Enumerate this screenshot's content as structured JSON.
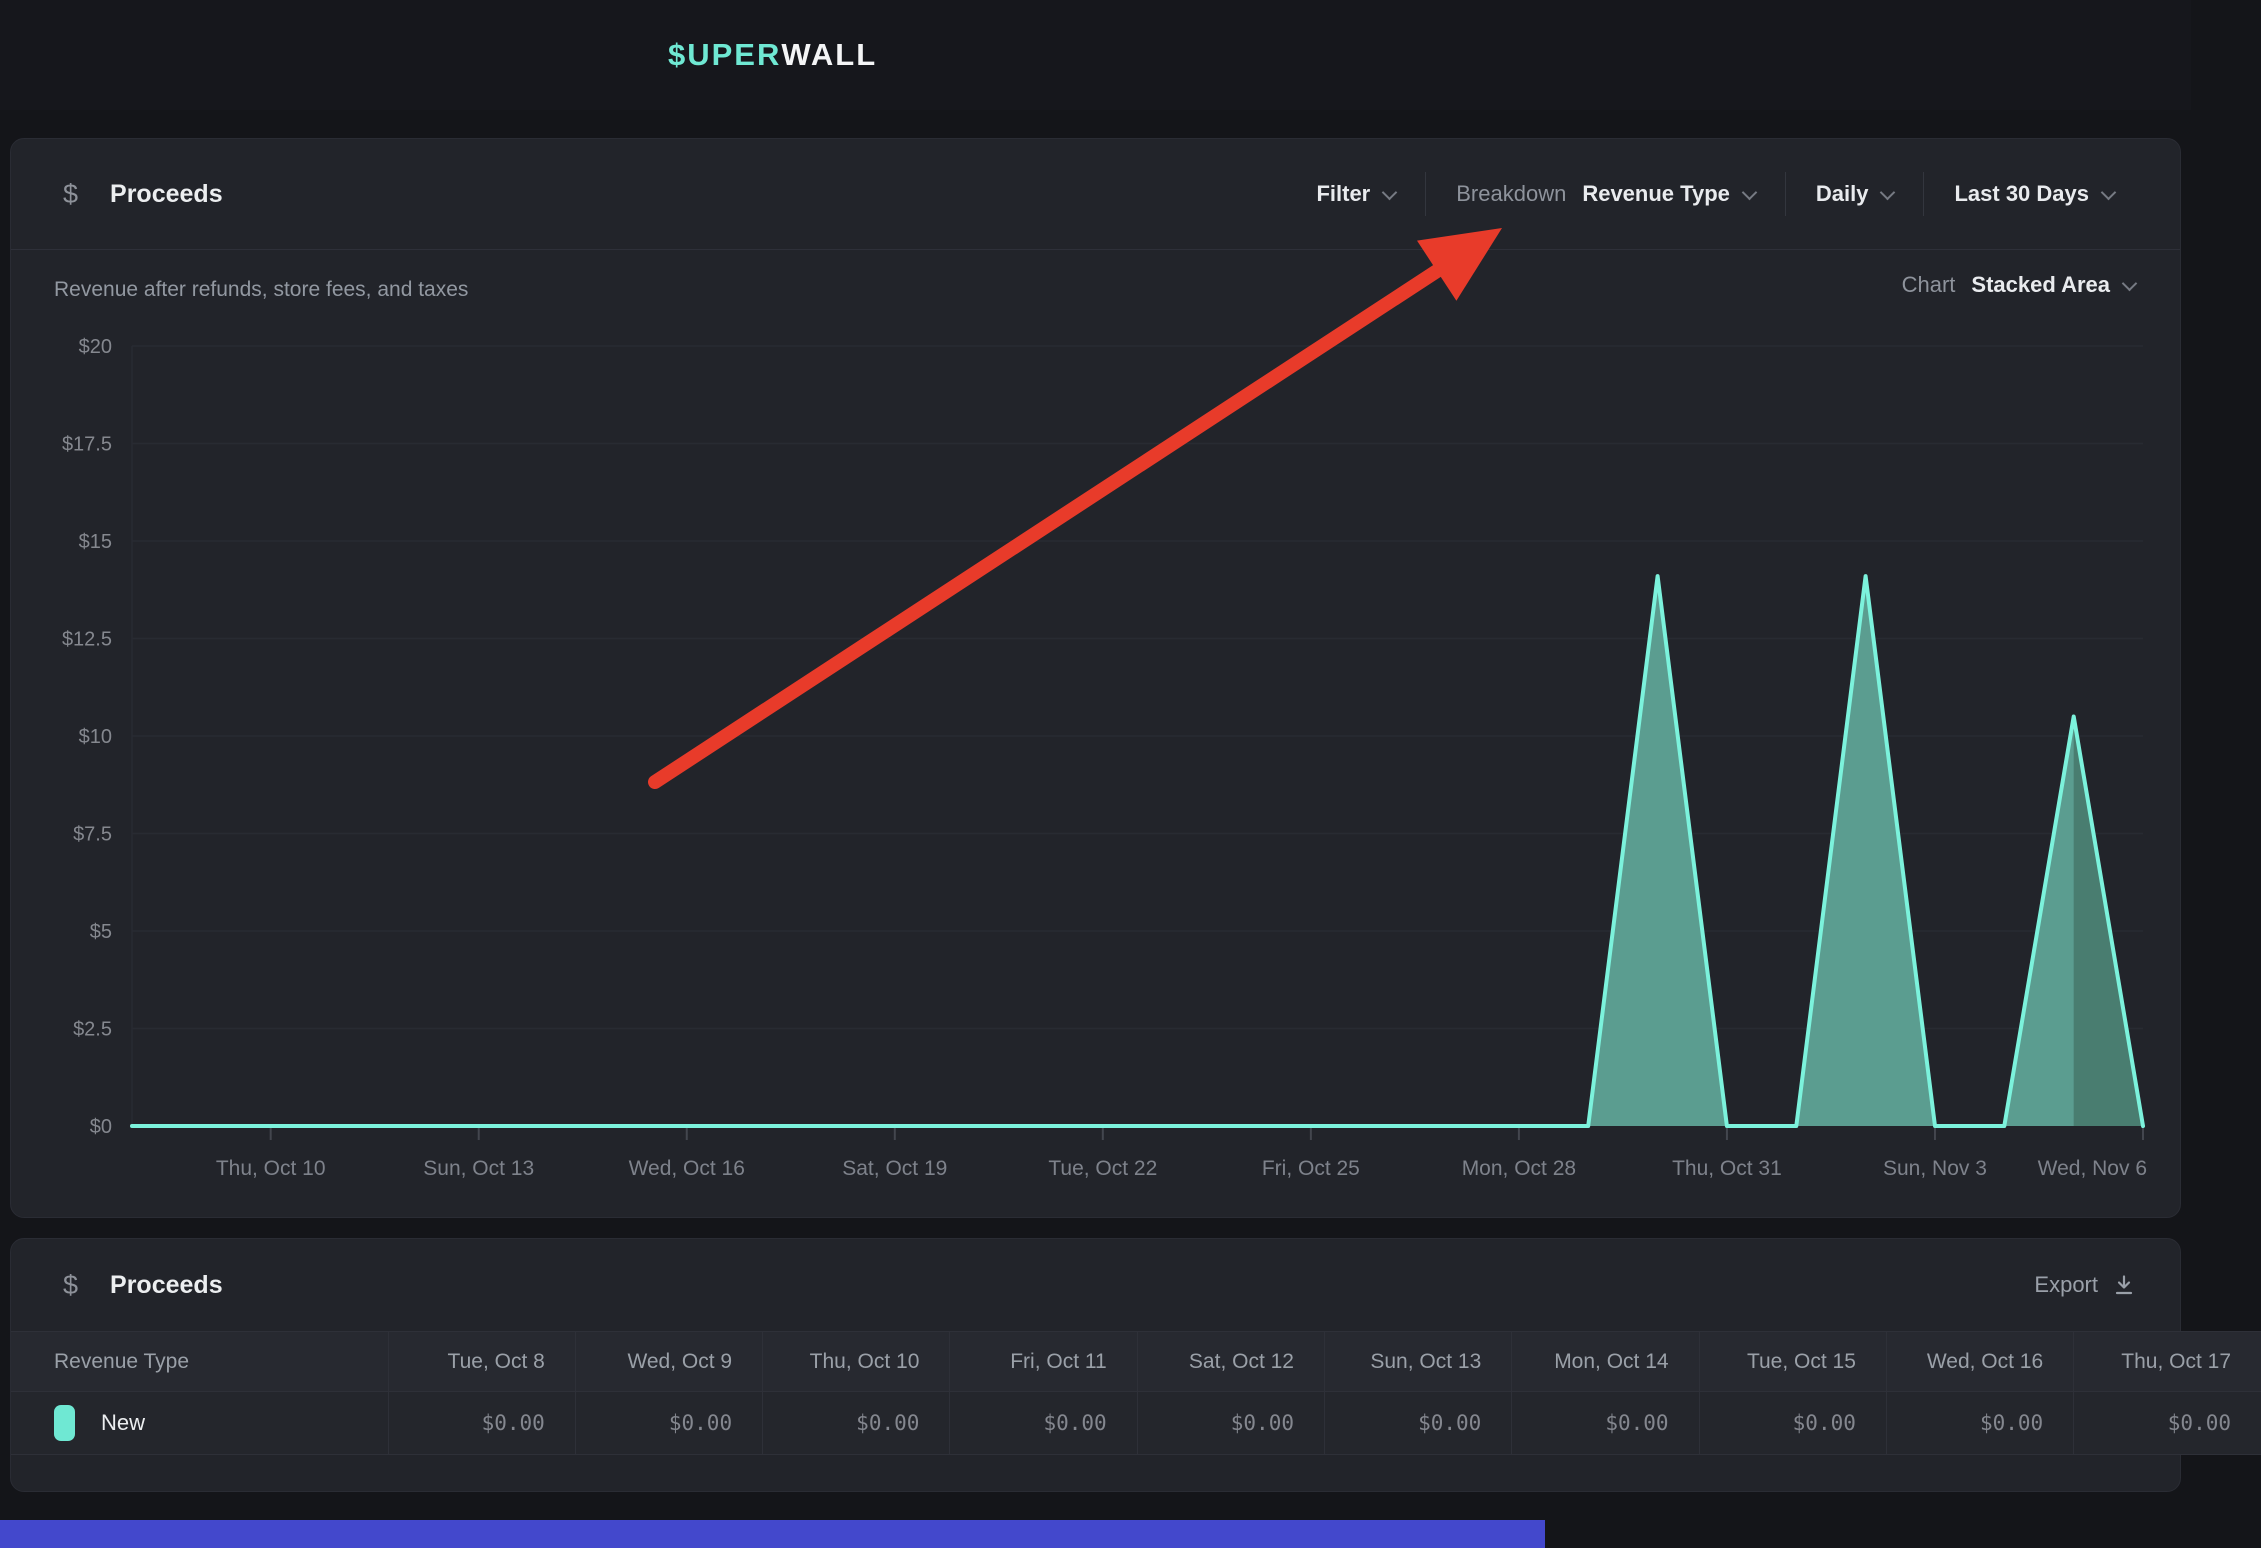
{
  "header": {
    "logo_prefix": "$UPER",
    "logo_suffix": "WALL"
  },
  "proceeds_card": {
    "icon": "$",
    "title": "Proceeds",
    "subtitle": "Revenue after refunds, store fees, and taxes",
    "controls": {
      "filter_label": "Filter",
      "breakdown_label": "Breakdown",
      "breakdown_value": "Revenue Type",
      "interval_value": "Daily",
      "range_value": "Last 30 Days",
      "chart_label": "Chart",
      "chart_value": "Stacked Area"
    }
  },
  "chart_data": {
    "type": "area",
    "title": "Proceeds",
    "xlabel": "",
    "ylabel": "",
    "ylim": [
      0,
      20
    ],
    "ytick_step": 2.5,
    "ytick_labels": [
      "$0",
      "$2.5",
      "$5",
      "$7.5",
      "$10",
      "$12.5",
      "$15",
      "$17.5",
      "$20"
    ],
    "grid": true,
    "x": [
      "Oct 8",
      "Oct 9",
      "Oct 10",
      "Oct 11",
      "Oct 12",
      "Oct 13",
      "Oct 14",
      "Oct 15",
      "Oct 16",
      "Oct 17",
      "Oct 18",
      "Oct 19",
      "Oct 20",
      "Oct 21",
      "Oct 22",
      "Oct 23",
      "Oct 24",
      "Oct 25",
      "Oct 26",
      "Oct 27",
      "Oct 28",
      "Oct 29",
      "Oct 30",
      "Oct 31",
      "Nov 1",
      "Nov 2",
      "Nov 3",
      "Nov 4",
      "Nov 5",
      "Nov 6"
    ],
    "xticks": [
      {
        "index": 2,
        "label": "Thu, Oct 10"
      },
      {
        "index": 5,
        "label": "Sun, Oct 13"
      },
      {
        "index": 8,
        "label": "Wed, Oct 16"
      },
      {
        "index": 11,
        "label": "Sat, Oct 19"
      },
      {
        "index": 14,
        "label": "Tue, Oct 22"
      },
      {
        "index": 17,
        "label": "Fri, Oct 25"
      },
      {
        "index": 20,
        "label": "Mon, Oct 28"
      },
      {
        "index": 23,
        "label": "Thu, Oct 31"
      },
      {
        "index": 26,
        "label": "Sun, Nov 3"
      },
      {
        "index": 29,
        "label": "Wed, Nov 6"
      }
    ],
    "series": [
      {
        "name": "New",
        "values": [
          0,
          0,
          0,
          0,
          0,
          0,
          0,
          0,
          0,
          0,
          0,
          0,
          0,
          0,
          0,
          0,
          0,
          0,
          0,
          0,
          0,
          0,
          14.1,
          0,
          0,
          14.1,
          0,
          0,
          10.5,
          0
        ],
        "line_color": "#7cf2dc",
        "fill_color": "#5b9d90",
        "final_fill_color": "#497d70",
        "final_segment_from": 28
      }
    ],
    "legend_position": "none",
    "grid_color": "#282b32",
    "axis_text_color": "#85888f",
    "tick_color": "#43464e"
  },
  "annotation_arrow": {
    "color": "#e83b2a"
  },
  "table_card": {
    "icon": "$",
    "title": "Proceeds",
    "export_label": "Export",
    "columns": [
      "Revenue Type",
      "Tue, Oct 8",
      "Wed, Oct 9",
      "Thu, Oct 10",
      "Fri, Oct 11",
      "Sat, Oct 12",
      "Sun, Oct 13",
      "Mon, Oct 14",
      "Tue, Oct 15",
      "Wed, Oct 16",
      "Thu, Oct 17"
    ],
    "rows": [
      {
        "label": "New",
        "swatch_color": "#6fe8d3",
        "values": [
          "$0.00",
          "$0.00",
          "$0.00",
          "$0.00",
          "$0.00",
          "$0.00",
          "$0.00",
          "$0.00",
          "$0.00",
          "$0.00"
        ]
      }
    ]
  },
  "bottom_bar": {
    "color": "#4348cc"
  }
}
